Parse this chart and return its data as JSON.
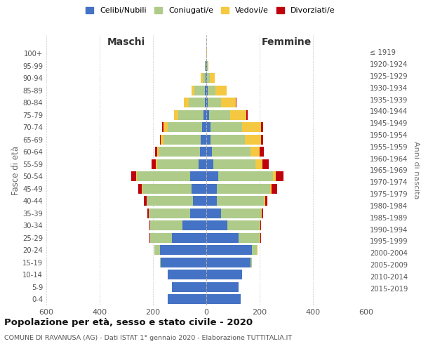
{
  "age_groups": [
    "0-4",
    "5-9",
    "10-14",
    "15-19",
    "20-24",
    "25-29",
    "30-34",
    "35-39",
    "40-44",
    "45-49",
    "50-54",
    "55-59",
    "60-64",
    "65-69",
    "70-74",
    "75-79",
    "80-84",
    "85-89",
    "90-94",
    "95-99",
    "100+"
  ],
  "birth_years": [
    "2015-2019",
    "2010-2014",
    "2005-2009",
    "2000-2004",
    "1995-1999",
    "1990-1994",
    "1985-1989",
    "1980-1984",
    "1975-1979",
    "1970-1974",
    "1965-1969",
    "1960-1964",
    "1955-1959",
    "1950-1954",
    "1945-1949",
    "1940-1944",
    "1935-1939",
    "1930-1934",
    "1925-1929",
    "1920-1924",
    "≤ 1919"
  ],
  "male": {
    "celibe": [
      145,
      130,
      145,
      170,
      175,
      130,
      90,
      60,
      50,
      55,
      60,
      30,
      25,
      20,
      15,
      10,
      5,
      5,
      2,
      2,
      0
    ],
    "coniugato": [
      0,
      0,
      0,
      5,
      20,
      80,
      120,
      155,
      175,
      185,
      200,
      155,
      155,
      140,
      130,
      95,
      60,
      40,
      10,
      2,
      0
    ],
    "vedovo": [
      0,
      0,
      0,
      0,
      0,
      0,
      0,
      0,
      0,
      2,
      3,
      5,
      5,
      10,
      15,
      15,
      20,
      10,
      8,
      0,
      0
    ],
    "divorziato": [
      0,
      0,
      0,
      0,
      0,
      3,
      3,
      5,
      8,
      12,
      18,
      15,
      8,
      5,
      5,
      2,
      0,
      0,
      0,
      0,
      0
    ]
  },
  "female": {
    "nubile": [
      130,
      120,
      135,
      165,
      170,
      120,
      80,
      55,
      40,
      40,
      45,
      25,
      20,
      15,
      15,
      10,
      5,
      5,
      2,
      2,
      0
    ],
    "coniugata": [
      0,
      0,
      0,
      5,
      20,
      80,
      120,
      150,
      175,
      200,
      205,
      160,
      145,
      130,
      120,
      80,
      50,
      30,
      10,
      2,
      0
    ],
    "vedova": [
      0,
      0,
      0,
      0,
      2,
      2,
      2,
      3,
      5,
      5,
      10,
      25,
      35,
      60,
      70,
      60,
      55,
      40,
      20,
      5,
      2
    ],
    "divorziata": [
      0,
      0,
      0,
      0,
      0,
      2,
      3,
      5,
      8,
      20,
      30,
      25,
      15,
      8,
      8,
      5,
      2,
      2,
      0,
      0,
      0
    ]
  },
  "colors": {
    "celibe": "#4472C4",
    "coniugato": "#AECB8A",
    "vedovo": "#F5C842",
    "divorziato": "#C0000C"
  },
  "legend_labels": [
    "Celibi/Nubili",
    "Coniugati/e",
    "Vedovi/e",
    "Divorziati/e"
  ],
  "title": "Popolazione per età, sesso e stato civile - 2020",
  "subtitle": "COMUNE DI RAVANUSA (AG) - Dati ISTAT 1° gennaio 2020 - Elaborazione TUTTITALIA.IT",
  "xlabel_left": "Maschi",
  "xlabel_right": "Femmine",
  "ylabel_left": "Fasce di età",
  "ylabel_right": "Anni di nascita",
  "xlim": 600,
  "bg_color": "#ffffff",
  "grid_color": "#cccccc"
}
